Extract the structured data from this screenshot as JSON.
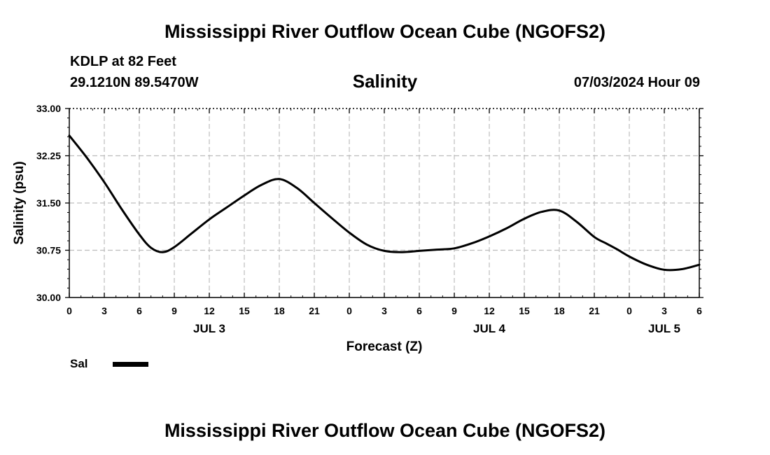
{
  "header": {
    "title": "Mississippi River Outflow Ocean Cube (NGOFS2)",
    "station": "KDLP at 82 Feet",
    "coordinates": "29.1210N  89.5470W",
    "run_time": "07/03/2024 Hour 09"
  },
  "footer": {
    "title": "Mississippi River Outflow Ocean Cube (NGOFS2)"
  },
  "chart_data": {
    "type": "line",
    "title": "Salinity",
    "xlabel": "Forecast (Z)",
    "ylabel": "Salinity (psu)",
    "ylim": [
      30.0,
      33.0
    ],
    "xlim": [
      0,
      54
    ],
    "y_ticks": [
      "30.00",
      "30.75",
      "31.50",
      "32.25",
      "33.00"
    ],
    "x_ticks": [
      0,
      3,
      6,
      9,
      12,
      15,
      18,
      21,
      24,
      27,
      30,
      33,
      36,
      39,
      42,
      45,
      48,
      51,
      54
    ],
    "x_tick_labels": [
      "0",
      "3",
      "6",
      "9",
      "12",
      "15",
      "18",
      "21",
      "0",
      "3",
      "6",
      "9",
      "12",
      "15",
      "18",
      "21",
      "0",
      "3",
      "6"
    ],
    "day_labels": [
      {
        "text": "JUL 3",
        "x": 12
      },
      {
        "text": "JUL 4",
        "x": 36
      },
      {
        "text": "JUL 5",
        "x": 51
      }
    ],
    "grid": true,
    "legend": "bottom-left",
    "series": [
      {
        "name": "Sal",
        "color": "#000000",
        "x": [
          0,
          1.5,
          3,
          4.5,
          6,
          7,
          8,
          9,
          10.5,
          12,
          13.5,
          15,
          16.5,
          18,
          19.5,
          21,
          22.5,
          24,
          25.5,
          27,
          28.5,
          30,
          31.5,
          33,
          34.5,
          36,
          37.5,
          39,
          40.5,
          42,
          43.5,
          45,
          46,
          47,
          48,
          49.5,
          51,
          52.5,
          54
        ],
        "values": [
          32.57,
          32.22,
          31.83,
          31.4,
          31.0,
          30.79,
          30.72,
          30.8,
          31.02,
          31.24,
          31.43,
          31.62,
          31.79,
          31.88,
          31.74,
          31.5,
          31.26,
          31.03,
          30.84,
          30.74,
          30.72,
          30.74,
          30.76,
          30.78,
          30.86,
          30.97,
          31.1,
          31.25,
          31.36,
          31.38,
          31.2,
          30.96,
          30.86,
          30.76,
          30.65,
          30.52,
          30.44,
          30.45,
          30.52
        ]
      }
    ]
  }
}
